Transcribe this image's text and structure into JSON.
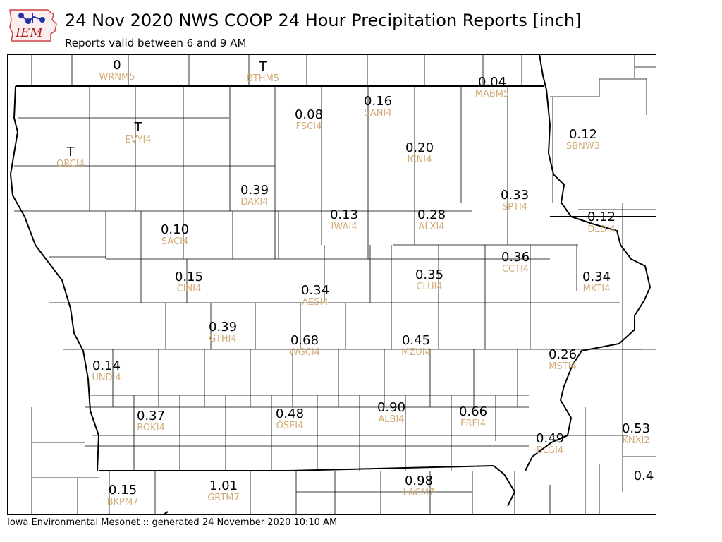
{
  "header": {
    "title": "24 Nov 2020 NWS COOP 24 Hour Precipitation Reports [inch]",
    "subtitle": "Reports valid between 6 and 9 AM"
  },
  "logo": {
    "text": "IEM"
  },
  "footer": {
    "text": "Iowa Environmental Mesonet :: generated 24 November 2020 10:10 AM"
  },
  "colors": {
    "station_id": "#d4ac78",
    "value": "#000000",
    "county_line": "#000000"
  },
  "stations": [
    {
      "id": "WRNM5",
      "value": "0"
    },
    {
      "id": "BTHM5",
      "value": "T"
    },
    {
      "id": "MABM5",
      "value": "0.04"
    },
    {
      "id": "SANI4",
      "value": "0.16"
    },
    {
      "id": "FSCI4",
      "value": "0.08"
    },
    {
      "id": "EVYI4",
      "value": "T"
    },
    {
      "id": "ORCI4",
      "value": "T"
    },
    {
      "id": "ICNI4",
      "value": "0.20"
    },
    {
      "id": "SBNW3",
      "value": "0.12"
    },
    {
      "id": "SPTI4",
      "value": "0.33"
    },
    {
      "id": "DAKI4",
      "value": "0.39"
    },
    {
      "id": "IWAI4",
      "value": "0.13"
    },
    {
      "id": "ALXI4",
      "value": "0.28"
    },
    {
      "id": "DLDI4",
      "value": "0.12"
    },
    {
      "id": "SACI4",
      "value": "0.10"
    },
    {
      "id": "CCTI4",
      "value": "0.36"
    },
    {
      "id": "CINI4",
      "value": "0.15"
    },
    {
      "id": "CLUI4",
      "value": "0.35"
    },
    {
      "id": "MKTI4",
      "value": "0.34"
    },
    {
      "id": "AESI4",
      "value": "0.34"
    },
    {
      "id": "GTHI4",
      "value": "0.39"
    },
    {
      "id": "WGCI4",
      "value": "0.68"
    },
    {
      "id": "MZUI4",
      "value": "0.45"
    },
    {
      "id": "MSTI4",
      "value": "0.26"
    },
    {
      "id": "UNDI4",
      "value": "0.14"
    },
    {
      "id": "ALBI4",
      "value": "0.90"
    },
    {
      "id": "BOKI4",
      "value": "0.37"
    },
    {
      "id": "OSEI4",
      "value": "0.48"
    },
    {
      "id": "FRFI4",
      "value": "0.66"
    },
    {
      "id": "KNXI2",
      "value": "0.53"
    },
    {
      "id": "BLGI4",
      "value": "0.49"
    },
    {
      "id": "LACM7",
      "value": "0.98"
    },
    {
      "id": "GRTM7",
      "value": "1.01"
    },
    {
      "id": "BKPM7",
      "value": "0.15"
    },
    {
      "id": "",
      "value": "0.4"
    }
  ]
}
